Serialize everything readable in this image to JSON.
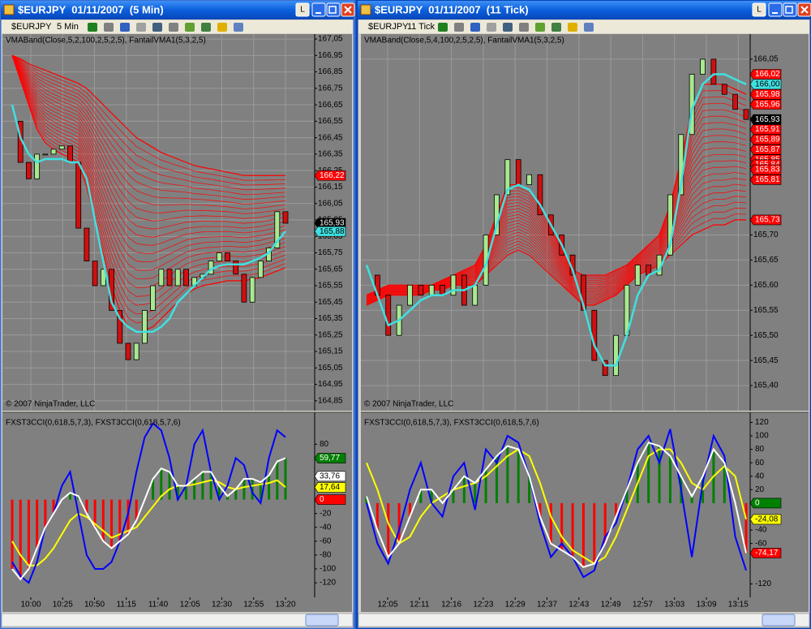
{
  "windows": [
    {
      "title": "$EURJPY  01/11/2007  (5 Min)",
      "lock_label": "L",
      "toolbar": {
        "symbol": "$EURJPY",
        "interval": "5 Min"
      },
      "price_panel": {
        "indicator_label": "VMABand(Close,5,2,100,2,5,2,5), FantailVMA1(5,3,2,5)",
        "copyright": "© 2007 NinjaTrader, LLC",
        "ylim": [
          164.79,
          167.08
        ],
        "yticks": [
          {
            "value": 167.05,
            "label": "167,05"
          },
          {
            "value": 166.95,
            "label": "166,95"
          },
          {
            "value": 166.85,
            "label": "166,85"
          },
          {
            "value": 166.75,
            "label": "166,75"
          },
          {
            "value": 166.65,
            "label": "166,65"
          },
          {
            "value": 166.55,
            "label": "166,55"
          },
          {
            "value": 166.45,
            "label": "166,45"
          },
          {
            "value": 166.35,
            "label": "166,35"
          },
          {
            "value": 166.25,
            "label": "166,25"
          },
          {
            "value": 166.15,
            "label": "166,15"
          },
          {
            "value": 166.05,
            "label": "166,05"
          },
          {
            "value": 165.95,
            "label": "165,95"
          },
          {
            "value": 165.85,
            "label": "165,85"
          },
          {
            "value": 165.75,
            "label": "165,75"
          },
          {
            "value": 165.65,
            "label": "165,65"
          },
          {
            "value": 165.55,
            "label": "165,55"
          },
          {
            "value": 165.45,
            "label": "165,45"
          },
          {
            "value": 165.35,
            "label": "165,35"
          },
          {
            "value": 165.25,
            "label": "165,25"
          },
          {
            "value": 165.15,
            "label": "165,15"
          },
          {
            "value": 165.05,
            "label": "165,05"
          },
          {
            "value": 164.95,
            "label": "164,95"
          },
          {
            "value": 164.85,
            "label": "164,85"
          }
        ],
        "markers": [
          {
            "value": 166.22,
            "label": "166,22",
            "color": "#ff0000"
          },
          {
            "value": 165.93,
            "label": "165,93",
            "color": "#000000"
          },
          {
            "value": 165.88,
            "label": "165,88",
            "color": "#40e0e0"
          }
        ],
        "closes": [
          166.55,
          166.3,
          166.2,
          166.35,
          166.35,
          166.38,
          166.4,
          166.3,
          165.9,
          165.7,
          165.55,
          165.65,
          165.4,
          165.2,
          165.1,
          165.2,
          165.4,
          165.55,
          165.65,
          165.55,
          165.65,
          165.55,
          165.6,
          165.62,
          165.7,
          165.75,
          165.7,
          165.62,
          165.45,
          165.6,
          165.7,
          165.78,
          166.0,
          165.93
        ],
        "fantail": [
          166.65,
          166.45,
          166.35,
          166.3,
          166.32,
          166.32,
          166.32,
          166.3,
          166.3,
          166.2,
          165.95,
          165.7,
          165.45,
          165.35,
          165.3,
          165.27,
          165.27,
          165.27,
          165.3,
          165.35,
          165.45,
          165.5,
          165.55,
          165.6,
          165.65,
          165.67,
          165.68,
          165.68,
          165.68,
          165.7,
          165.72,
          165.75,
          165.82,
          165.88
        ],
        "band_upper": [
          166.95,
          166.93,
          166.9,
          166.88,
          166.86,
          166.84,
          166.82,
          166.8,
          166.78,
          166.75,
          166.7,
          166.65,
          166.6,
          166.55,
          166.5,
          166.45,
          166.42,
          166.39,
          166.36,
          166.34,
          166.32,
          166.3,
          166.28,
          166.27,
          166.26,
          166.25,
          166.24,
          166.23,
          166.22,
          166.22,
          166.22,
          166.22,
          166.22,
          166.22
        ],
        "band_lower": [
          166.95,
          166.8,
          166.65,
          166.5,
          166.42,
          166.38,
          166.35,
          166.33,
          166.3,
          166.15,
          165.95,
          165.75,
          165.55,
          165.4,
          165.3,
          165.27,
          165.28,
          165.3,
          165.35,
          165.4,
          165.45,
          165.5,
          165.53,
          165.55,
          165.56,
          165.57,
          165.58,
          165.58,
          165.58,
          165.59,
          165.6,
          165.62,
          165.64,
          165.66
        ],
        "colors": {
          "fantail": "#40e0e0",
          "band": "#ff0000",
          "up": "#a8e890",
          "down": "#d01010"
        }
      },
      "osc_panel": {
        "label": "FXST3CCI(0,618,5,7,3), FXST3CCI(0,618,5,7,6)",
        "ylim": [
          -141,
          126
        ],
        "yticks": [
          80,
          -20,
          -40,
          -60,
          -80,
          -100,
          -120
        ],
        "markers": [
          {
            "value": 59.77,
            "label": "59,77",
            "color": "#008000"
          },
          {
            "value": 33.76,
            "label": "33,76",
            "color": "#ffffff"
          },
          {
            "value": 17.64,
            "label": "17,64",
            "color": "#ffff00"
          },
          {
            "value": 0,
            "label": "0",
            "color": "#ff0000"
          }
        ],
        "blue": [
          -90,
          -110,
          -120,
          -90,
          -40,
          -20,
          20,
          40,
          -20,
          -80,
          -100,
          -100,
          -90,
          -60,
          -20,
          40,
          90,
          110,
          100,
          60,
          0,
          20,
          80,
          100,
          40,
          0,
          20,
          60,
          50,
          10,
          -5,
          60,
          100,
          90
        ],
        "white": [
          -100,
          -115,
          -100,
          -70,
          -40,
          -20,
          0,
          10,
          5,
          -20,
          -40,
          -60,
          -70,
          -60,
          -50,
          -30,
          0,
          30,
          45,
          40,
          20,
          20,
          30,
          40,
          40,
          20,
          5,
          15,
          30,
          30,
          25,
          35,
          55,
          60
        ],
        "yellow": [
          -60,
          -80,
          -95,
          -95,
          -85,
          -70,
          -50,
          -30,
          -20,
          -25,
          -35,
          -45,
          -55,
          -50,
          -45,
          -40,
          -25,
          -10,
          5,
          15,
          20,
          20,
          22,
          25,
          28,
          25,
          18,
          15,
          18,
          20,
          22,
          24,
          28,
          18
        ],
        "colors": {
          "blue": "#0000ff",
          "white": "#ffffff",
          "yellow": "#ffff00",
          "pos": "#008000",
          "neg": "#ff0000"
        }
      },
      "time_labels": [
        "10:00",
        "10:25",
        "10:50",
        "11:15",
        "11:40",
        "12:05",
        "12:30",
        "12:55",
        "13:20"
      ]
    },
    {
      "title": "$EURJPY  01/11/2007  (11 Tick)",
      "lock_label": "L",
      "toolbar": {
        "symbol": "$EURJPY",
        "interval": "11 Tick"
      },
      "price_panel": {
        "indicator_label": "VMABand(Close,5,4,100,2,5,2,5), FantailVMA1(5,3,2,5)",
        "copyright": "© 2007 NinjaTrader, LLC",
        "ylim": [
          165.35,
          166.1
        ],
        "yticks": [
          {
            "value": 166.05,
            "label": "166,05"
          },
          {
            "value": 165.7,
            "label": "165,70"
          },
          {
            "value": 165.65,
            "label": "165,65"
          },
          {
            "value": 165.6,
            "label": "165,60"
          },
          {
            "value": 165.55,
            "label": "165,55"
          },
          {
            "value": 165.5,
            "label": "165,50"
          },
          {
            "value": 165.45,
            "label": "165,45"
          },
          {
            "value": 165.4,
            "label": "165,40"
          }
        ],
        "markers": [
          {
            "value": 166.02,
            "label": "166,02",
            "color": "#ff0000"
          },
          {
            "value": 166.0,
            "label": "166,00",
            "color": "#40e0e0"
          },
          {
            "value": 165.98,
            "label": "165,98",
            "color": "#ff0000"
          },
          {
            "value": 165.96,
            "label": "165,96",
            "color": "#ff0000"
          },
          {
            "value": 165.93,
            "label": "165,93",
            "color": "#000000"
          },
          {
            "value": 165.91,
            "label": "165,91",
            "color": "#ff0000"
          },
          {
            "value": 165.89,
            "label": "165,89",
            "color": "#ff0000"
          },
          {
            "value": 165.87,
            "label": "165,87",
            "color": "#ff0000"
          },
          {
            "value": 165.85,
            "label": "165,85",
            "color": "#ff0000"
          },
          {
            "value": 165.84,
            "label": "165,84",
            "color": "#ff0000"
          },
          {
            "value": 165.83,
            "label": "165,83",
            "color": "#ff0000"
          },
          {
            "value": 165.81,
            "label": "165,81",
            "color": "#ff0000"
          },
          {
            "value": 165.73,
            "label": "165,73",
            "color": "#ff0000"
          }
        ],
        "closes": [
          165.62,
          165.58,
          165.5,
          165.56,
          165.6,
          165.58,
          165.6,
          165.58,
          165.62,
          165.56,
          165.6,
          165.7,
          165.78,
          165.85,
          165.8,
          165.82,
          165.74,
          165.7,
          165.66,
          165.62,
          165.55,
          165.45,
          165.42,
          165.5,
          165.6,
          165.64,
          165.62,
          165.66,
          165.78,
          165.9,
          166.02,
          166.05,
          166.0,
          165.98,
          165.95,
          165.93
        ],
        "fantail": [
          165.64,
          165.58,
          165.52,
          165.53,
          165.55,
          165.57,
          165.58,
          165.58,
          165.59,
          165.59,
          165.6,
          165.64,
          165.72,
          165.79,
          165.8,
          165.79,
          165.76,
          165.72,
          165.68,
          165.63,
          165.56,
          165.48,
          165.44,
          165.44,
          165.5,
          165.58,
          165.62,
          165.63,
          165.68,
          165.8,
          165.95,
          166.0,
          166.02,
          166.02,
          166.01,
          166.0
        ],
        "band_upper": [
          165.58,
          165.59,
          165.6,
          165.6,
          165.6,
          165.6,
          165.6,
          165.61,
          165.62,
          165.63,
          165.64,
          165.68,
          165.74,
          165.8,
          165.8,
          165.79,
          165.76,
          165.72,
          165.67,
          165.63,
          165.62,
          165.62,
          165.62,
          165.63,
          165.64,
          165.66,
          165.68,
          165.7,
          165.76,
          165.85,
          165.95,
          166.0,
          166.0,
          166.0,
          165.99,
          165.98
        ],
        "band_lower": [
          165.56,
          165.57,
          165.58,
          165.58,
          165.58,
          165.58,
          165.59,
          165.59,
          165.6,
          165.6,
          165.6,
          165.62,
          165.64,
          165.66,
          165.67,
          165.66,
          165.64,
          165.62,
          165.6,
          165.58,
          165.56,
          165.56,
          165.57,
          165.58,
          165.6,
          165.62,
          165.63,
          165.64,
          165.66,
          165.68,
          165.7,
          165.71,
          165.72,
          165.72,
          165.73,
          165.73
        ],
        "colors": {
          "fantail": "#40e0e0",
          "band": "#ff0000",
          "up": "#a8e890",
          "down": "#d01010"
        }
      },
      "osc_panel": {
        "label": "FXST3CCI(0,618,5,7,3), FXST3CCI(0,618,5,7,6)",
        "ylim": [
          -140,
          135
        ],
        "yticks": [
          120,
          100,
          80,
          60,
          40,
          20,
          -40,
          -60,
          -120
        ],
        "markers": [
          {
            "value": 0,
            "label": "0",
            "color": "#008000"
          },
          {
            "value": -24.08,
            "label": "-24,08",
            "color": "#ffff00"
          },
          {
            "value": -74.17,
            "label": "-74,17",
            "color": "#ff0000"
          }
        ],
        "blue": [
          0,
          -60,
          -90,
          -40,
          20,
          60,
          0,
          -20,
          40,
          60,
          -10,
          80,
          60,
          100,
          90,
          40,
          -30,
          -80,
          -60,
          -80,
          -110,
          -100,
          -50,
          -30,
          20,
          80,
          100,
          60,
          110,
          20,
          -80,
          30,
          100,
          70,
          -50,
          -100
        ],
        "white": [
          10,
          -40,
          -80,
          -60,
          -20,
          20,
          20,
          0,
          20,
          40,
          30,
          50,
          70,
          85,
          80,
          40,
          -20,
          -60,
          -70,
          -80,
          -95,
          -90,
          -60,
          -20,
          20,
          60,
          90,
          85,
          70,
          40,
          10,
          40,
          80,
          60,
          0,
          -74.17
        ],
        "yellow": [
          60,
          20,
          -30,
          -60,
          -50,
          -20,
          0,
          10,
          20,
          25,
          30,
          40,
          55,
          70,
          80,
          70,
          30,
          -20,
          -50,
          -70,
          -80,
          -90,
          -80,
          -50,
          -10,
          30,
          70,
          80,
          80,
          60,
          30,
          20,
          40,
          55,
          40,
          -24.08
        ],
        "colors": {
          "blue": "#0000ff",
          "white": "#ffffff",
          "yellow": "#ffff00",
          "pos": "#008000",
          "neg": "#ff0000"
        }
      },
      "time_labels": [
        "12:05",
        "12:11",
        "12:16",
        "12:23",
        "12:29",
        "12:37",
        "12:43",
        "12:49",
        "12:57",
        "13:03",
        "13:09",
        "13:15"
      ]
    }
  ]
}
